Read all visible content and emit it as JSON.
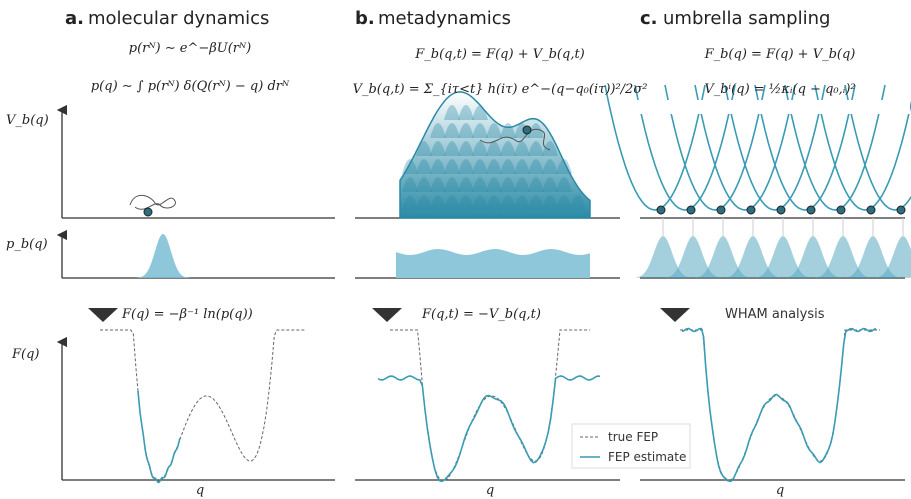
{
  "panels": [
    {
      "label": "a.",
      "title": "molecular dynamics",
      "equations": [
        "p(rᴺ) ∼ e^−βU(rᴺ)",
        "p(q) ∼ ∫ p(rᴺ) δ(Q(rᴺ) − q) drᴺ"
      ],
      "step": "F(q) = −β⁻¹ ln(p(q))",
      "x_label": "q"
    },
    {
      "label": "b.",
      "title": "metadynamics",
      "equations": [
        "F_b(q,t) = F(q) + V_b(q,t)",
        "V_b(q,t) = Σ_{iτ<t} h(iτ) e^−(q−q₀(iτ))²/2σ²"
      ],
      "step": "F(q,t) = −V_b(q,t)",
      "x_label": "q"
    },
    {
      "label": "c.",
      "title": "umbrella sampling",
      "equations": [
        "F_b(q) = F(q) + V_b(q)",
        "V_bⁱ(q) = ½κᵢ(q − q₀,ᵢ)²"
      ],
      "step": "WHAM analysis",
      "x_label": "q"
    }
  ],
  "y_labels": [
    "V_b(q)",
    "p_b(q)",
    "F(q)"
  ],
  "legend": [
    "true FEP",
    "FEP estimate"
  ]
}
